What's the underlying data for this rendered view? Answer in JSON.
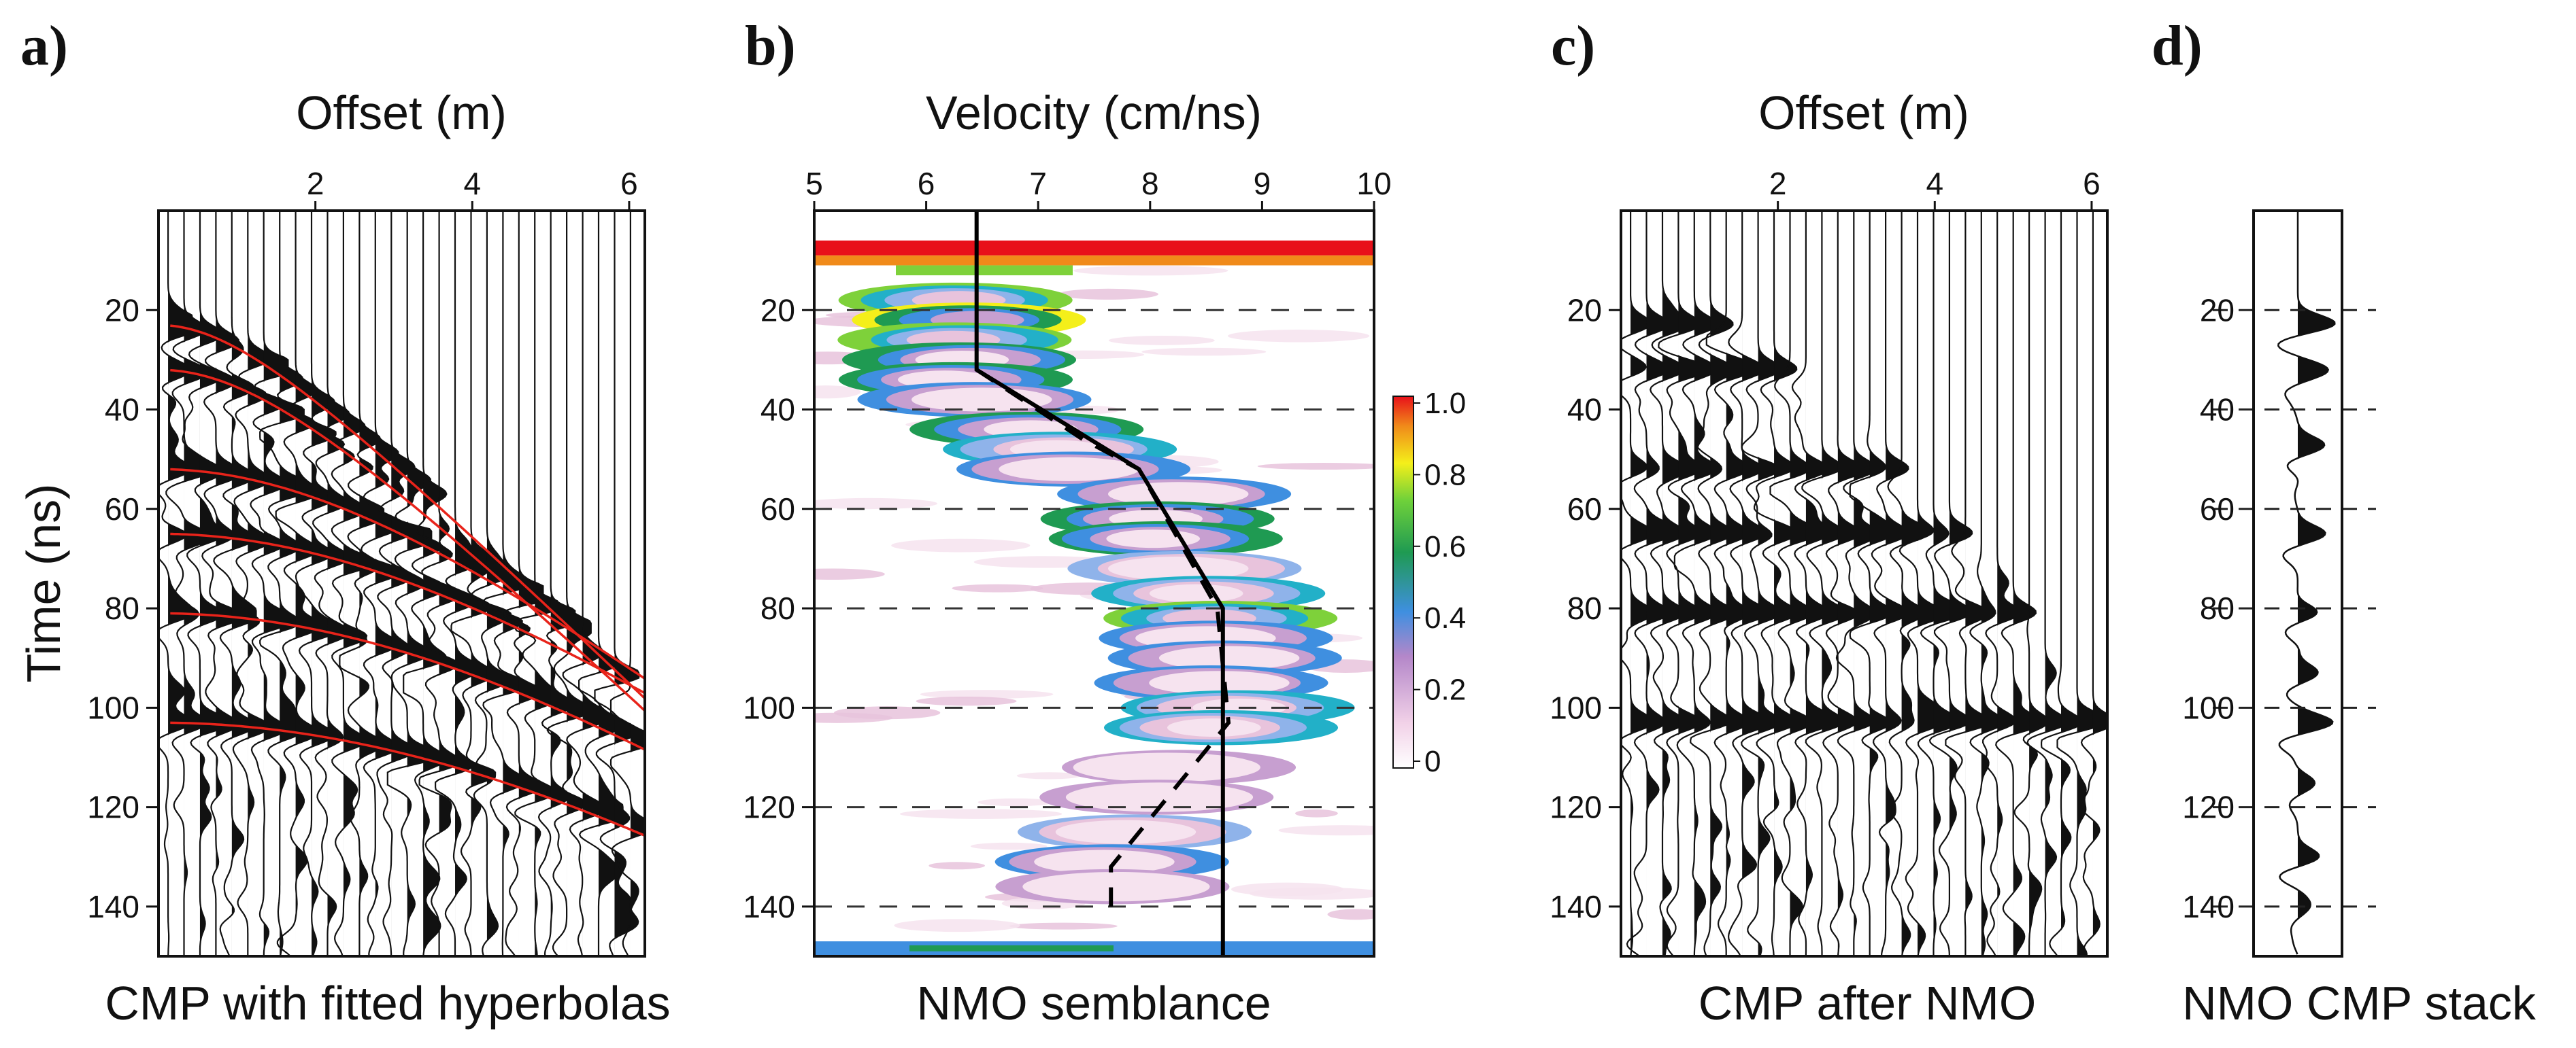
{
  "chart_data": [
    {
      "panel": "a)",
      "type": "scatter",
      "title": "Offset (m)",
      "xlabel": "Offset (m)",
      "ylabel": "Time (ns)",
      "caption": "CMP with fitted hyperbolas",
      "x_ticks": [
        2,
        4,
        6
      ],
      "y_ticks": [
        20,
        40,
        60,
        80,
        100,
        120,
        140
      ],
      "xlim": [
        0,
        6.2
      ],
      "ylim": [
        0,
        150
      ],
      "traces": 30,
      "fitted_hyperbolas": [
        {
          "t0": 23,
          "velocity": 6.5
        },
        {
          "t0": 32,
          "velocity": 6.5
        },
        {
          "t0": 52,
          "velocity": 7.9
        },
        {
          "t0": 65,
          "velocity": 8.6
        },
        {
          "t0": 81,
          "velocity": 8.6
        },
        {
          "t0": 103,
          "velocity": 8.6
        }
      ],
      "hyperbola_color": "#e8231a"
    },
    {
      "panel": "b)",
      "type": "heatmap",
      "title": "Velocity (cm/ns)",
      "xlabel": "Velocity (cm/ns)",
      "caption": "NMO semblance",
      "x_ticks": [
        5,
        6,
        7,
        8,
        9,
        10
      ],
      "y_ticks": [
        20,
        40,
        60,
        80,
        100,
        120,
        140
      ],
      "xlim": [
        5,
        10
      ],
      "ylim": [
        0,
        150
      ],
      "colorbar": {
        "ticks": [
          "1.0",
          "0.8",
          "0.6",
          "0.4",
          "0.2",
          "0"
        ],
        "range": [
          0,
          1
        ]
      },
      "series": [
        {
          "name": "velocity model (solid)",
          "points": [
            [
              6.45,
              0
            ],
            [
              6.45,
              32
            ],
            [
              7.9,
              52
            ],
            [
              8.65,
              80
            ],
            [
              8.65,
              150
            ]
          ]
        },
        {
          "name": "picked velocities (dashed)",
          "points": [
            [
              6.45,
              32
            ],
            [
              7.4,
              46
            ],
            [
              7.9,
              52
            ],
            [
              8.6,
              80
            ],
            [
              8.7,
              103
            ],
            [
              7.65,
              132
            ],
            [
              7.65,
              140
            ]
          ]
        }
      ]
    },
    {
      "panel": "c)",
      "type": "scatter",
      "title": "Offset (m)",
      "xlabel": "Offset (m)",
      "caption": "CMP after NMO",
      "x_ticks": [
        2,
        4,
        6
      ],
      "y_ticks": [
        20,
        40,
        60,
        80,
        100,
        120,
        140
      ],
      "xlim": [
        0,
        6.2
      ],
      "ylim": [
        0,
        150
      ],
      "traces": 30
    },
    {
      "panel": "d)",
      "type": "line",
      "caption": "NMO CMP stack",
      "y_ticks": [
        20,
        40,
        60,
        80,
        100,
        120,
        140
      ],
      "ylim": [
        0,
        150
      ],
      "events": [
        {
          "t": 23,
          "amp": 1.0
        },
        {
          "t": 32,
          "amp": 0.8
        },
        {
          "t": 47,
          "amp": 0.45
        },
        {
          "t": 65,
          "amp": 0.75
        },
        {
          "t": 81,
          "amp": 0.65
        },
        {
          "t": 93,
          "amp": 0.55
        },
        {
          "t": 103,
          "amp": 0.95
        },
        {
          "t": 115,
          "amp": 0.4
        },
        {
          "t": 130,
          "amp": 0.6
        },
        {
          "t": 140,
          "amp": 0.3
        }
      ]
    }
  ]
}
